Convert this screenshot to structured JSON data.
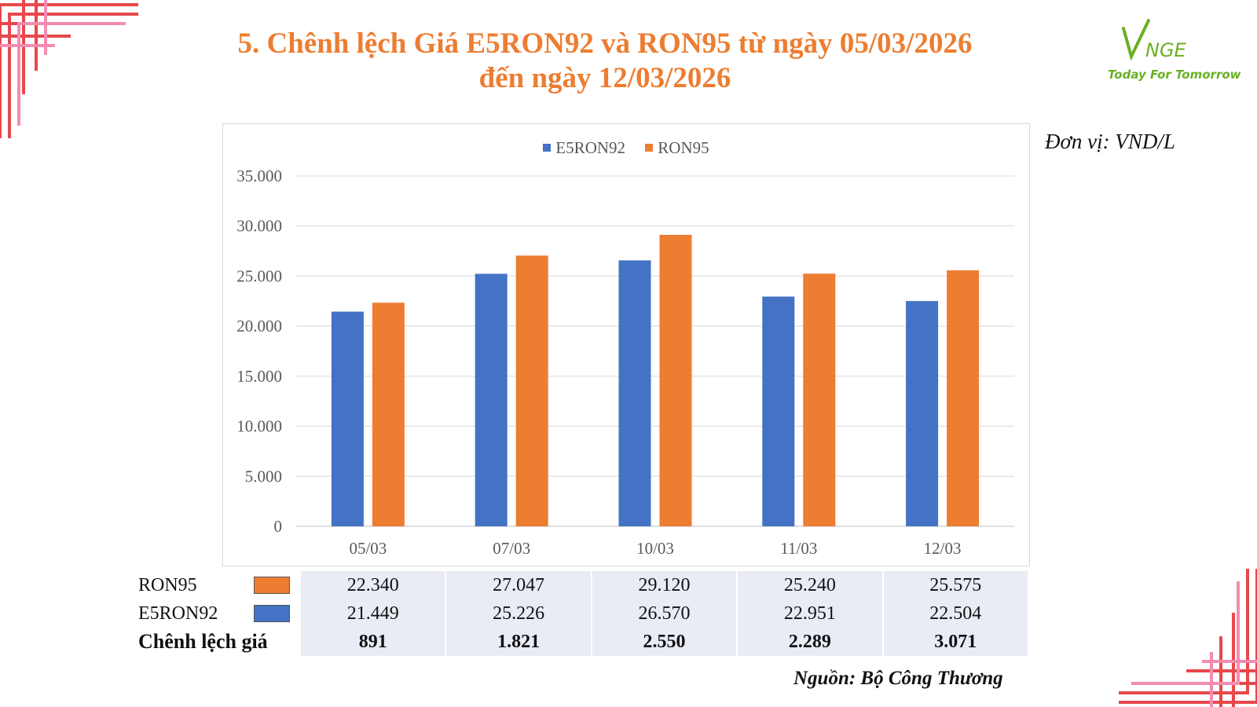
{
  "title": {
    "line1": "5. Chênh lệch Giá E5RON92 và RON95 từ ngày 05/03/2026",
    "line2": "đến ngày 12/03/2026"
  },
  "logo": {
    "brand": "VNGE",
    "slogan": "Today For Tomorrow"
  },
  "unit_label": "Đơn vị: VND/L",
  "source_label": "Nguồn: Bộ Công Thương",
  "colors": {
    "e5ron92": "#4472C4",
    "ron95": "#ED7D31",
    "title": "#ED7D31",
    "table_bg": "#E9EBF5",
    "decor": "#E8484C"
  },
  "chart_data": {
    "type": "bar",
    "categories": [
      "05/03",
      "07/03",
      "10/03",
      "11/03",
      "12/03"
    ],
    "series": [
      {
        "name": "E5RON92",
        "values": [
          21449,
          25226,
          26570,
          22951,
          22504
        ]
      },
      {
        "name": "RON95",
        "values": [
          22340,
          27047,
          29120,
          25240,
          25575
        ]
      }
    ],
    "ylim": [
      0,
      35000
    ],
    "yticks": [
      "0",
      "5.000",
      "10.000",
      "15.000",
      "20.000",
      "25.000",
      "30.000",
      "35.000"
    ],
    "grid": true,
    "legend_position": "top-center"
  },
  "table": {
    "rows": [
      {
        "label": "RON95",
        "swatch": "ron95",
        "values": [
          "22.340",
          "27.047",
          "29.120",
          "25.240",
          "25.575"
        ]
      },
      {
        "label": "E5RON92",
        "swatch": "e5ron92",
        "values": [
          "21.449",
          "25.226",
          "26.570",
          "22.951",
          "22.504"
        ]
      },
      {
        "label": "Chênh lệch giá",
        "values": [
          "891",
          "1.821",
          "2.550",
          "2.289",
          "3.071"
        ]
      }
    ]
  }
}
